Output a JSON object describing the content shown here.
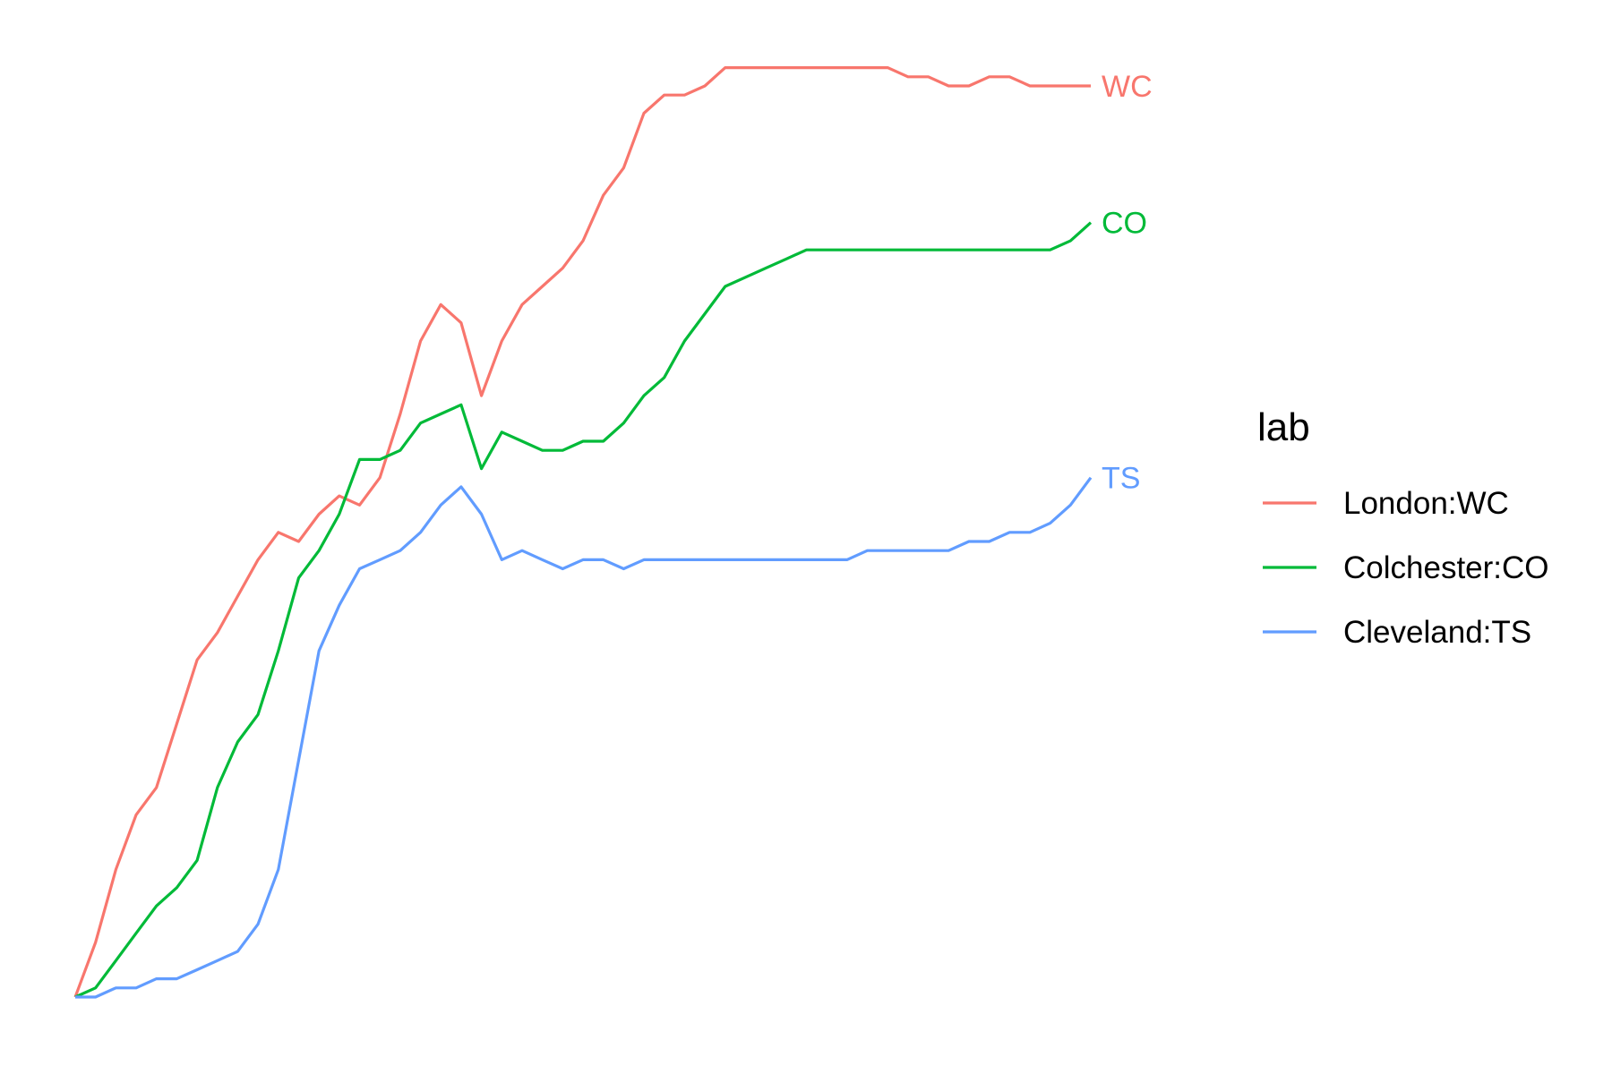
{
  "chart_data": {
    "type": "line",
    "title": "",
    "xlabel": "",
    "ylabel": "",
    "grid": false,
    "axes_visible": false,
    "legend": {
      "title": "lab",
      "placement": "right"
    },
    "x": [
      0,
      2,
      4,
      6,
      8,
      10,
      12,
      14,
      16,
      18,
      20,
      22,
      24,
      26,
      28,
      30,
      32,
      34,
      36,
      38,
      40,
      42,
      44,
      46,
      48,
      50,
      52,
      54,
      56,
      58,
      60,
      62,
      64,
      66,
      68,
      70,
      72,
      74,
      76,
      78,
      80,
      82,
      84,
      86,
      88,
      90,
      92,
      94,
      96,
      98,
      100
    ],
    "xlim": [
      0,
      100
    ],
    "ylim": [
      0,
      100
    ],
    "series": [
      {
        "name": "London:WC",
        "end_label": "WC",
        "color": "#F8766D",
        "values": [
          0,
          6,
          14,
          20,
          23,
          30,
          37,
          40,
          44,
          48,
          51,
          50,
          53,
          55,
          54,
          57,
          64,
          72,
          76,
          74,
          66,
          72,
          76,
          78,
          80,
          83,
          88,
          91,
          97,
          99,
          99,
          100,
          102,
          102,
          102,
          102,
          102,
          102,
          102,
          102,
          102,
          101,
          101,
          100,
          100,
          101,
          101,
          100,
          100,
          100,
          100
        ]
      },
      {
        "name": "Colchester:CO",
        "end_label": "CO",
        "color": "#00BA38",
        "values": [
          0,
          1,
          4,
          7,
          10,
          12,
          15,
          23,
          28,
          31,
          38,
          46,
          49,
          53,
          59,
          59,
          60,
          63,
          64,
          65,
          58,
          62,
          61,
          60,
          60,
          61,
          61,
          63,
          66,
          68,
          72,
          75,
          78,
          79,
          80,
          81,
          82,
          82,
          82,
          82,
          82,
          82,
          82,
          82,
          82,
          82,
          82,
          82,
          82,
          83,
          85
        ]
      },
      {
        "name": "Cleveland:TS",
        "end_label": "TS",
        "color": "#619CFF",
        "values": [
          0,
          0,
          1,
          1,
          2,
          2,
          3,
          4,
          5,
          8,
          14,
          26,
          38,
          43,
          47,
          48,
          49,
          51,
          54,
          56,
          53,
          48,
          49,
          48,
          47,
          48,
          48,
          47,
          48,
          48,
          48,
          48,
          48,
          48,
          48,
          48,
          48,
          48,
          48,
          49,
          49,
          49,
          49,
          49,
          50,
          50,
          51,
          51,
          52,
          54,
          57
        ]
      }
    ]
  }
}
